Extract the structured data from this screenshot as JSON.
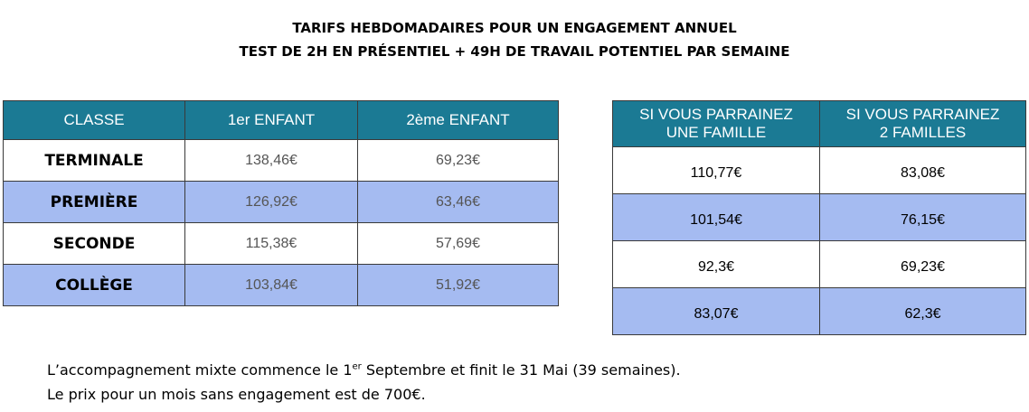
{
  "header": {
    "title_line1": "TARIFS HEBDOMADAIRES POUR UN ENGAGEMENT ANNUEL",
    "title_line2": "TEST DE 2H EN PRÉSENTIEL + 49H DE TRAVAIL POTENTIEL PAR SEMAINE"
  },
  "tarifs": {
    "headers": [
      "CLASSE",
      "1er ENFANT",
      "2ème ENFANT"
    ],
    "rows": [
      {
        "classe": "TERMINALE",
        "premier": "138,46€",
        "deuxieme": "69,23€"
      },
      {
        "classe": "PREMIÈRE",
        "premier": "126,92€",
        "deuxieme": "63,46€"
      },
      {
        "classe": "SECONDE",
        "premier": "115,38€",
        "deuxieme": "57,69€"
      },
      {
        "classe": "COLLÈGE",
        "premier": "103,84€",
        "deuxieme": "51,92€"
      }
    ]
  },
  "parrainage": {
    "headers": [
      {
        "line1": "SI VOUS PARRAINEZ",
        "line2": "UNE FAMILLE"
      },
      {
        "line1": "SI VOUS PARRAINEZ",
        "line2": "2 FAMILLES"
      }
    ],
    "rows": [
      {
        "une": "110,77€",
        "deux": "83,08€"
      },
      {
        "une": "101,54€",
        "deux": "76,15€"
      },
      {
        "une": "92,3€",
        "deux": "69,23€"
      },
      {
        "une": "83,07€",
        "deux": "62,3€"
      }
    ]
  },
  "notes": {
    "line1_part1": "L’accompagnement mixte commence le 1",
    "line1_sup": "er",
    "line1_part2": " Septembre et finit le 31 Mai (39 semaines).",
    "line2": "Le prix pour un mois sans engagement est de 700€."
  },
  "colors": {
    "header_bg": "#1b7a94",
    "row_blue": "#a5bbf1"
  }
}
